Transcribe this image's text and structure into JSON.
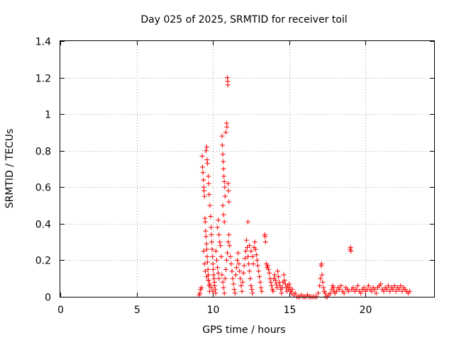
{
  "chart_data": {
    "type": "scatter",
    "title": "Day 025 of 2025, SRMTID for receiver toil",
    "xlabel": "GPS time / hours",
    "ylabel": "SRMTID / TECUs",
    "xlim": [
      0,
      24.5
    ],
    "ylim": [
      0,
      1.4
    ],
    "xticks": [
      0,
      5,
      10,
      15,
      20
    ],
    "xtick_labels": [
      "0",
      "5",
      "10",
      "15",
      "20"
    ],
    "yticks": [
      0,
      0.2,
      0.4,
      0.6,
      0.8,
      1,
      1.2,
      1.4
    ],
    "ytick_labels": [
      "0",
      "0.2",
      "0.4",
      "0.6",
      "0.8",
      "1",
      "1.2",
      "1.4"
    ],
    "grid": true,
    "marker": "+",
    "marker_color": "#ff0000",
    "series": [
      {
        "name": "SRMTID",
        "points": [
          [
            9.1,
            0.01
          ],
          [
            9.15,
            0.02
          ],
          [
            9.2,
            0.04
          ],
          [
            9.25,
            0.05
          ],
          [
            9.3,
            0.77
          ],
          [
            9.32,
            0.71
          ],
          [
            9.35,
            0.68
          ],
          [
            9.38,
            0.64
          ],
          [
            9.4,
            0.6
          ],
          [
            9.42,
            0.58
          ],
          [
            9.45,
            0.55
          ],
          [
            9.48,
            0.43
          ],
          [
            9.5,
            0.41
          ],
          [
            9.52,
            0.36
          ],
          [
            9.55,
            0.33
          ],
          [
            9.58,
            0.29
          ],
          [
            9.6,
            0.26
          ],
          [
            9.62,
            0.22
          ],
          [
            9.65,
            0.19
          ],
          [
            9.68,
            0.15
          ],
          [
            9.7,
            0.12
          ],
          [
            9.72,
            0.09
          ],
          [
            9.75,
            0.06
          ],
          [
            9.78,
            0.03
          ],
          [
            9.55,
            0.8
          ],
          [
            9.6,
            0.82
          ],
          [
            9.62,
            0.75
          ],
          [
            9.65,
            0.73
          ],
          [
            9.7,
            0.66
          ],
          [
            9.72,
            0.62
          ],
          [
            9.75,
            0.56
          ],
          [
            9.8,
            0.5
          ],
          [
            9.85,
            0.44
          ],
          [
            9.88,
            0.38
          ],
          [
            9.9,
            0.34
          ],
          [
            9.92,
            0.3
          ],
          [
            9.95,
            0.26
          ],
          [
            9.98,
            0.22
          ],
          [
            10.0,
            0.18
          ],
          [
            10.02,
            0.15
          ],
          [
            10.05,
            0.12
          ],
          [
            10.08,
            0.1
          ],
          [
            10.1,
            0.08
          ],
          [
            10.12,
            0.06
          ],
          [
            10.15,
            0.04
          ],
          [
            10.18,
            0.02
          ],
          [
            9.4,
            0.25
          ],
          [
            9.45,
            0.18
          ],
          [
            9.5,
            0.14
          ],
          [
            9.6,
            0.11
          ],
          [
            9.7,
            0.09
          ],
          [
            9.8,
            0.07
          ],
          [
            9.9,
            0.05
          ],
          [
            10.0,
            0.03
          ],
          [
            10.2,
            0.25
          ],
          [
            10.25,
            0.2
          ],
          [
            10.3,
            0.16
          ],
          [
            10.35,
            0.13
          ],
          [
            10.4,
            0.1
          ],
          [
            10.3,
            0.38
          ],
          [
            10.35,
            0.42
          ],
          [
            10.4,
            0.34
          ],
          [
            10.45,
            0.3
          ],
          [
            10.5,
            0.28
          ],
          [
            10.55,
            0.22
          ],
          [
            10.6,
            0.88
          ],
          [
            10.62,
            0.83
          ],
          [
            10.65,
            0.78
          ],
          [
            10.68,
            0.74
          ],
          [
            10.7,
            0.7
          ],
          [
            10.72,
            0.66
          ],
          [
            10.75,
            0.63
          ],
          [
            10.78,
            0.6
          ],
          [
            10.8,
            0.55
          ],
          [
            10.65,
            0.5
          ],
          [
            10.7,
            0.45
          ],
          [
            10.75,
            0.41
          ],
          [
            10.85,
            0.9
          ],
          [
            10.9,
            0.95
          ],
          [
            10.92,
            0.93
          ],
          [
            10.95,
            1.2
          ],
          [
            10.97,
            1.18
          ],
          [
            10.98,
            1.16
          ],
          [
            11.0,
            0.62
          ],
          [
            11.02,
            0.58
          ],
          [
            11.05,
            0.52
          ],
          [
            10.6,
            0.12
          ],
          [
            10.65,
            0.08
          ],
          [
            10.7,
            0.05
          ],
          [
            10.75,
            0.02
          ],
          [
            10.8,
            0.1
          ],
          [
            10.85,
            0.15
          ],
          [
            10.9,
            0.2
          ],
          [
            10.95,
            0.24
          ],
          [
            11.0,
            0.3
          ],
          [
            11.05,
            0.34
          ],
          [
            11.1,
            0.28
          ],
          [
            11.15,
            0.22
          ],
          [
            11.2,
            0.18
          ],
          [
            11.25,
            0.14
          ],
          [
            11.3,
            0.1
          ],
          [
            11.35,
            0.07
          ],
          [
            11.4,
            0.04
          ],
          [
            11.45,
            0.02
          ],
          [
            11.5,
            0.12
          ],
          [
            11.55,
            0.16
          ],
          [
            11.6,
            0.2
          ],
          [
            11.65,
            0.24
          ],
          [
            11.7,
            0.18
          ],
          [
            11.75,
            0.14
          ],
          [
            11.8,
            0.1
          ],
          [
            11.85,
            0.06
          ],
          [
            11.9,
            0.03
          ],
          [
            11.95,
            0.08
          ],
          [
            12.0,
            0.13
          ],
          [
            12.05,
            0.17
          ],
          [
            12.1,
            0.21
          ],
          [
            12.15,
            0.25
          ],
          [
            12.2,
            0.31
          ],
          [
            12.25,
            0.27
          ],
          [
            12.3,
            0.22
          ],
          [
            12.35,
            0.18
          ],
          [
            12.4,
            0.14
          ],
          [
            12.45,
            0.1
          ],
          [
            12.5,
            0.06
          ],
          [
            12.55,
            0.04
          ],
          [
            12.6,
            0.02
          ],
          [
            12.3,
            0.41
          ],
          [
            12.4,
            0.28
          ],
          [
            12.5,
            0.25
          ],
          [
            12.6,
            0.22
          ],
          [
            12.65,
            0.18
          ],
          [
            12.7,
            0.27
          ],
          [
            12.75,
            0.3
          ],
          [
            12.8,
            0.26
          ],
          [
            12.85,
            0.23
          ],
          [
            12.9,
            0.2
          ],
          [
            12.95,
            0.17
          ],
          [
            13.0,
            0.14
          ],
          [
            13.05,
            0.11
          ],
          [
            13.1,
            0.08
          ],
          [
            13.15,
            0.05
          ],
          [
            13.2,
            0.03
          ],
          [
            13.4,
            0.34
          ],
          [
            13.42,
            0.33
          ],
          [
            13.45,
            0.3
          ],
          [
            13.5,
            0.18
          ],
          [
            13.55,
            0.16
          ],
          [
            13.6,
            0.17
          ],
          [
            13.65,
            0.15
          ],
          [
            13.7,
            0.13
          ],
          [
            13.75,
            0.1
          ],
          [
            13.8,
            0.08
          ],
          [
            13.85,
            0.06
          ],
          [
            13.9,
            0.04
          ],
          [
            13.95,
            0.03
          ],
          [
            14.0,
            0.1
          ],
          [
            14.05,
            0.12
          ],
          [
            14.1,
            0.09
          ],
          [
            14.15,
            0.07
          ],
          [
            14.2,
            0.05
          ],
          [
            14.25,
            0.14
          ],
          [
            14.3,
            0.11
          ],
          [
            14.35,
            0.08
          ],
          [
            14.4,
            0.06
          ],
          [
            14.45,
            0.04
          ],
          [
            14.5,
            0.02
          ],
          [
            14.55,
            0.05
          ],
          [
            14.6,
            0.08
          ],
          [
            14.65,
            0.12
          ],
          [
            14.7,
            0.09
          ],
          [
            14.75,
            0.07
          ],
          [
            14.8,
            0.05
          ],
          [
            14.85,
            0.03
          ],
          [
            14.9,
            0.06
          ],
          [
            14.95,
            0.04
          ],
          [
            15.0,
            0.07
          ],
          [
            15.05,
            0.05
          ],
          [
            15.1,
            0.03
          ],
          [
            15.15,
            0.02
          ],
          [
            15.2,
            0.04
          ],
          [
            15.3,
            0.01
          ],
          [
            15.4,
            0.02
          ],
          [
            15.5,
            0.0
          ],
          [
            15.6,
            0.0
          ],
          [
            15.7,
            0.0
          ],
          [
            15.8,
            0.01
          ],
          [
            15.9,
            0.0
          ],
          [
            16.0,
            0.0
          ],
          [
            16.1,
            0.0
          ],
          [
            16.2,
            0.01
          ],
          [
            16.3,
            0.0
          ],
          [
            16.4,
            0.0
          ],
          [
            16.5,
            0.0
          ],
          [
            16.6,
            0.0
          ],
          [
            16.7,
            0.0
          ],
          [
            16.8,
            0.0
          ],
          [
            16.9,
            0.02
          ],
          [
            17.0,
            0.06
          ],
          [
            17.05,
            0.1
          ],
          [
            17.1,
            0.17
          ],
          [
            17.12,
            0.18
          ],
          [
            17.15,
            0.12
          ],
          [
            17.2,
            0.08
          ],
          [
            17.25,
            0.05
          ],
          [
            17.3,
            0.03
          ],
          [
            17.35,
            0.02
          ],
          [
            17.4,
            0.0
          ],
          [
            17.5,
            0.0
          ],
          [
            17.6,
            0.01
          ],
          [
            17.7,
            0.02
          ],
          [
            17.8,
            0.04
          ],
          [
            17.85,
            0.06
          ],
          [
            17.9,
            0.05
          ],
          [
            17.95,
            0.03
          ],
          [
            18.0,
            0.02
          ],
          [
            18.1,
            0.03
          ],
          [
            18.2,
            0.05
          ],
          [
            18.3,
            0.04
          ],
          [
            18.4,
            0.06
          ],
          [
            18.5,
            0.03
          ],
          [
            18.6,
            0.02
          ],
          [
            18.7,
            0.05
          ],
          [
            18.8,
            0.04
          ],
          [
            18.9,
            0.03
          ],
          [
            19.0,
            0.26
          ],
          [
            19.02,
            0.27
          ],
          [
            19.05,
            0.25
          ],
          [
            19.1,
            0.04
          ],
          [
            19.2,
            0.05
          ],
          [
            19.3,
            0.03
          ],
          [
            19.4,
            0.04
          ],
          [
            19.5,
            0.06
          ],
          [
            19.6,
            0.03
          ],
          [
            19.7,
            0.02
          ],
          [
            19.8,
            0.04
          ],
          [
            19.9,
            0.05
          ],
          [
            20.0,
            0.03
          ],
          [
            20.1,
            0.04
          ],
          [
            20.2,
            0.06
          ],
          [
            20.3,
            0.04
          ],
          [
            20.4,
            0.03
          ],
          [
            20.5,
            0.05
          ],
          [
            20.6,
            0.04
          ],
          [
            20.7,
            0.02
          ],
          [
            20.8,
            0.05
          ],
          [
            20.9,
            0.06
          ],
          [
            21.0,
            0.07
          ],
          [
            21.1,
            0.04
          ],
          [
            21.2,
            0.03
          ],
          [
            21.3,
            0.05
          ],
          [
            21.4,
            0.04
          ],
          [
            21.5,
            0.06
          ],
          [
            21.6,
            0.03
          ],
          [
            21.7,
            0.05
          ],
          [
            21.8,
            0.04
          ],
          [
            21.9,
            0.06
          ],
          [
            22.0,
            0.03
          ],
          [
            22.1,
            0.05
          ],
          [
            22.2,
            0.04
          ],
          [
            22.3,
            0.06
          ],
          [
            22.4,
            0.03
          ],
          [
            22.5,
            0.05
          ],
          [
            22.6,
            0.04
          ],
          [
            22.7,
            0.03
          ],
          [
            22.8,
            0.02
          ],
          [
            22.9,
            0.03
          ]
        ]
      }
    ]
  }
}
